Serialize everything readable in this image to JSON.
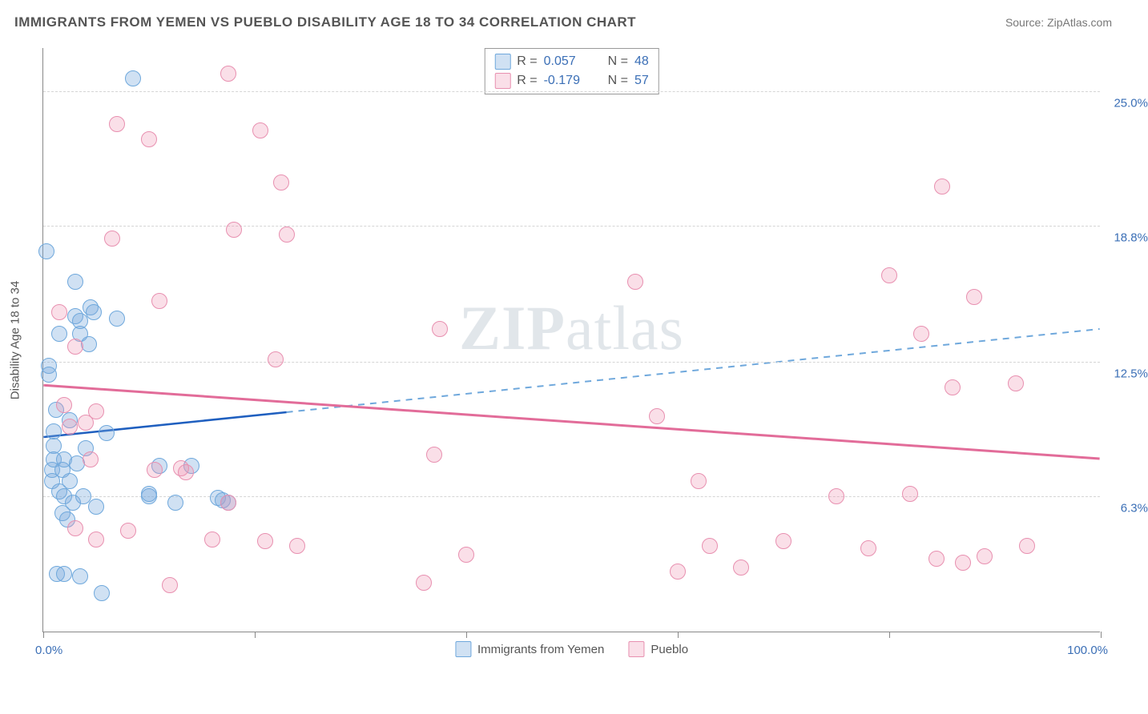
{
  "header": {
    "title": "IMMIGRANTS FROM YEMEN VS PUEBLO DISABILITY AGE 18 TO 34 CORRELATION CHART",
    "source": "Source: ZipAtlas.com"
  },
  "chart": {
    "type": "scatter",
    "yaxis_title": "Disability Age 18 to 34",
    "xlim": [
      0,
      100
    ],
    "ylim": [
      0,
      27
    ],
    "x_ticks": [
      0,
      20,
      40,
      60,
      80,
      100
    ],
    "x_tick_labels_shown": {
      "left": "0.0%",
      "right": "100.0%"
    },
    "y_gridlines": [
      6.3,
      12.5,
      18.8,
      25.0
    ],
    "y_gridline_labels": [
      "6.3%",
      "12.5%",
      "18.8%",
      "25.0%"
    ],
    "grid_color": "#d5d5d5",
    "axis_color": "#888888",
    "background_color": "#ffffff",
    "label_color": "#3b6fb6",
    "marker_radius": 10,
    "marker_stroke_width": 1.5,
    "series": [
      {
        "name": "Immigrants from Yemen",
        "fill_color": "rgba(120,170,220,0.35)",
        "stroke_color": "#6fa8dc",
        "r_value": "0.057",
        "n_value": "48",
        "trend": {
          "y_at_x0": 9.0,
          "y_at_x100": 14.0,
          "solid_until_x": 23,
          "solid_color": "#1f5fbf",
          "dash_color": "#6fa8dc",
          "width": 2.5
        },
        "points": [
          [
            0.3,
            17.6
          ],
          [
            0.5,
            12.3
          ],
          [
            0.5,
            11.9
          ],
          [
            0.8,
            7.5
          ],
          [
            0.8,
            7.0
          ],
          [
            1.0,
            8.6
          ],
          [
            1.0,
            8.0
          ],
          [
            1.0,
            9.3
          ],
          [
            1.2,
            10.3
          ],
          [
            1.3,
            2.7
          ],
          [
            1.5,
            13.8
          ],
          [
            1.5,
            6.5
          ],
          [
            1.8,
            7.5
          ],
          [
            1.8,
            5.5
          ],
          [
            2.0,
            8.0
          ],
          [
            2.0,
            2.7
          ],
          [
            2.0,
            6.3
          ],
          [
            2.3,
            5.2
          ],
          [
            2.5,
            9.8
          ],
          [
            2.5,
            7.0
          ],
          [
            2.8,
            6.0
          ],
          [
            3.0,
            14.6
          ],
          [
            3.0,
            16.2
          ],
          [
            3.2,
            7.8
          ],
          [
            3.5,
            13.8
          ],
          [
            3.5,
            14.4
          ],
          [
            3.5,
            2.6
          ],
          [
            3.8,
            6.3
          ],
          [
            4.0,
            8.5
          ],
          [
            4.3,
            13.3
          ],
          [
            4.5,
            15.0
          ],
          [
            4.8,
            14.8
          ],
          [
            5.0,
            5.8
          ],
          [
            5.5,
            1.8
          ],
          [
            6.0,
            9.2
          ],
          [
            7.0,
            14.5
          ],
          [
            8.5,
            25.6
          ],
          [
            10.0,
            6.3
          ],
          [
            10.0,
            6.4
          ],
          [
            11.0,
            7.7
          ],
          [
            12.5,
            6.0
          ],
          [
            14.0,
            7.7
          ],
          [
            16.5,
            6.2
          ],
          [
            17.0,
            6.1
          ],
          [
            17.5,
            6.0
          ]
        ]
      },
      {
        "name": "Pueblo",
        "fill_color": "rgba(240,150,180,0.3)",
        "stroke_color": "#e890b0",
        "r_value": "-0.179",
        "n_value": "57",
        "trend": {
          "y_at_x0": 11.4,
          "y_at_x100": 8.0,
          "solid_until_x": 100,
          "solid_color": "#e26c99",
          "dash_color": "#e890b0",
          "width": 3
        },
        "points": [
          [
            1.5,
            14.8
          ],
          [
            2.0,
            10.5
          ],
          [
            2.5,
            9.5
          ],
          [
            3.0,
            13.2
          ],
          [
            3.0,
            4.8
          ],
          [
            4.0,
            9.7
          ],
          [
            4.5,
            8.0
          ],
          [
            5.0,
            4.3
          ],
          [
            5.0,
            10.2
          ],
          [
            6.5,
            18.2
          ],
          [
            7.0,
            23.5
          ],
          [
            8.0,
            4.7
          ],
          [
            10.0,
            22.8
          ],
          [
            10.5,
            7.5
          ],
          [
            11.0,
            15.3
          ],
          [
            12.0,
            2.2
          ],
          [
            13.0,
            7.6
          ],
          [
            13.5,
            7.4
          ],
          [
            16.0,
            4.3
          ],
          [
            17.5,
            25.8
          ],
          [
            17.5,
            6.0
          ],
          [
            18.0,
            18.6
          ],
          [
            20.5,
            23.2
          ],
          [
            21.0,
            4.2
          ],
          [
            22.0,
            12.6
          ],
          [
            22.5,
            20.8
          ],
          [
            23.0,
            18.4
          ],
          [
            24.0,
            4.0
          ],
          [
            36.0,
            2.3
          ],
          [
            37.0,
            8.2
          ],
          [
            37.5,
            14.0
          ],
          [
            40.0,
            3.6
          ],
          [
            56.0,
            16.2
          ],
          [
            58.0,
            10.0
          ],
          [
            60.0,
            2.8
          ],
          [
            62.0,
            7.0
          ],
          [
            63.0,
            4.0
          ],
          [
            66.0,
            3.0
          ],
          [
            70.0,
            4.2
          ],
          [
            75.0,
            6.3
          ],
          [
            78.0,
            3.9
          ],
          [
            80.0,
            16.5
          ],
          [
            82.0,
            6.4
          ],
          [
            83.0,
            13.8
          ],
          [
            84.5,
            3.4
          ],
          [
            85.0,
            20.6
          ],
          [
            86.0,
            11.3
          ],
          [
            87.0,
            3.2
          ],
          [
            88.0,
            15.5
          ],
          [
            89.0,
            3.5
          ],
          [
            92.0,
            11.5
          ],
          [
            93.0,
            4.0
          ]
        ]
      }
    ],
    "stats_box": {
      "border_color": "#999999",
      "r_label": "R =",
      "n_label": "N ="
    },
    "legend": {
      "items": [
        "Immigrants from Yemen",
        "Pueblo"
      ]
    },
    "watermark": {
      "text_a": "ZIP",
      "text_b": "atlas"
    }
  }
}
